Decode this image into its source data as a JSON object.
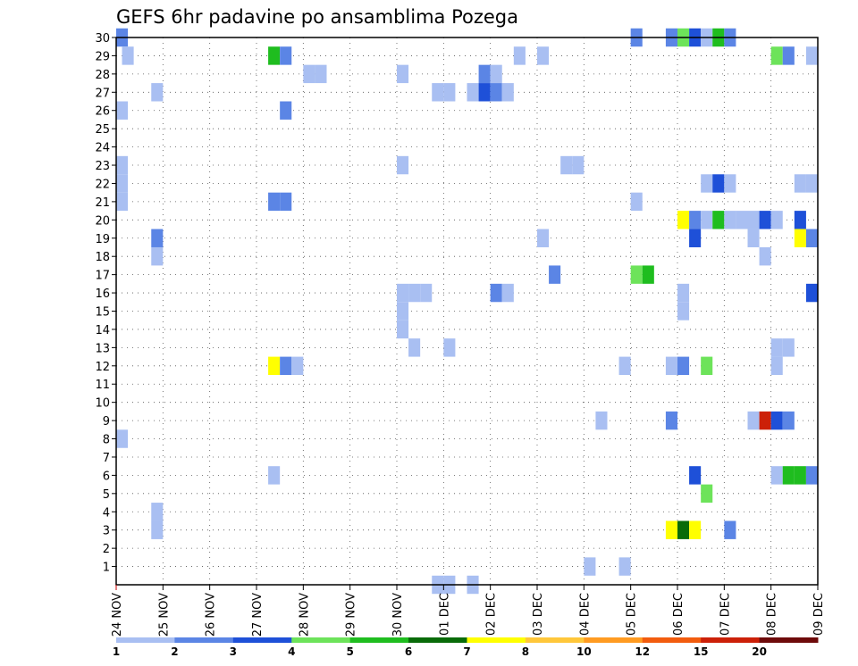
{
  "chart_data": {
    "type": "heatmap",
    "title": "GEFS 6hr padavine po ansamblima Pozega",
    "xlabel": "",
    "ylabel": "",
    "x_tick_labels": [
      "24 NOV",
      "25 NOV",
      "26 NOV",
      "27 NOV",
      "28 NOV",
      "29 NOV",
      "30 NOV",
      "01 DEC",
      "02 DEC",
      "03 DEC",
      "04 DEC",
      "05 DEC",
      "06 DEC",
      "07 DEC",
      "08 DEC",
      "09 DEC"
    ],
    "y_tick_labels": [
      "1",
      "2",
      "3",
      "4",
      "5",
      "6",
      "7",
      "8",
      "9",
      "10",
      "11",
      "12",
      "13",
      "14",
      "15",
      "16",
      "17",
      "18",
      "19",
      "20",
      "21",
      "22",
      "23",
      "24",
      "25",
      "26",
      "27",
      "28",
      "29",
      "30"
    ],
    "xlim": [
      0,
      15
    ],
    "ylim": [
      0,
      30
    ],
    "grid": true,
    "colorbar": {
      "labels": [
        "1",
        "2",
        "3",
        "4",
        "5",
        "6",
        "7",
        "8",
        "10",
        "12",
        "15",
        "20"
      ],
      "colors": [
        "#a9bff2",
        "#5b85e5",
        "#1e50d8",
        "#6de35a",
        "#1fbd1f",
        "#096b09",
        "#ffff00",
        "#ffc73a",
        "#ff9b21",
        "#f25c0e",
        "#cc2008",
        "#6e0a0a"
      ]
    },
    "cells": [
      {
        "x": 0.125,
        "y": 30,
        "level": 2
      },
      {
        "x": 0.25,
        "y": 29,
        "level": 1
      },
      {
        "x": 3.375,
        "y": 29,
        "level": 5
      },
      {
        "x": 3.625,
        "y": 29,
        "level": 2
      },
      {
        "x": 8.625,
        "y": 29,
        "level": 1
      },
      {
        "x": 9.125,
        "y": 29,
        "level": 1
      },
      {
        "x": 14.125,
        "y": 29,
        "level": 4
      },
      {
        "x": 14.375,
        "y": 29,
        "level": 2
      },
      {
        "x": 14.875,
        "y": 29,
        "level": 1
      },
      {
        "x": 11.125,
        "y": 30,
        "level": 2
      },
      {
        "x": 11.875,
        "y": 30,
        "level": 2
      },
      {
        "x": 12.125,
        "y": 30,
        "level": 4
      },
      {
        "x": 12.375,
        "y": 30,
        "level": 3
      },
      {
        "x": 12.625,
        "y": 30,
        "level": 1
      },
      {
        "x": 12.875,
        "y": 30,
        "level": 5
      },
      {
        "x": 13.125,
        "y": 30,
        "level": 2
      },
      {
        "x": 4.125,
        "y": 28,
        "level": 1
      },
      {
        "x": 4.375,
        "y": 28,
        "level": 1
      },
      {
        "x": 6.125,
        "y": 28,
        "level": 1
      },
      {
        "x": 7.875,
        "y": 28,
        "level": 2
      },
      {
        "x": 8.125,
        "y": 28,
        "level": 1
      },
      {
        "x": 0.875,
        "y": 27,
        "level": 1
      },
      {
        "x": 6.875,
        "y": 27,
        "level": 1
      },
      {
        "x": 7.125,
        "y": 27,
        "level": 1
      },
      {
        "x": 7.625,
        "y": 27,
        "level": 1
      },
      {
        "x": 7.875,
        "y": 27,
        "level": 3
      },
      {
        "x": 8.125,
        "y": 27,
        "level": 2
      },
      {
        "x": 8.375,
        "y": 27,
        "level": 1
      },
      {
        "x": 0.125,
        "y": 26,
        "level": 1
      },
      {
        "x": 3.625,
        "y": 26,
        "level": 2
      },
      {
        "x": 0.125,
        "y": 23,
        "level": 1
      },
      {
        "x": 6.125,
        "y": 23,
        "level": 1
      },
      {
        "x": 9.625,
        "y": 23,
        "level": 1
      },
      {
        "x": 9.875,
        "y": 23,
        "level": 1
      },
      {
        "x": 0.125,
        "y": 22,
        "level": 1
      },
      {
        "x": 12.625,
        "y": 22,
        "level": 1
      },
      {
        "x": 12.875,
        "y": 22,
        "level": 3
      },
      {
        "x": 13.125,
        "y": 22,
        "level": 1
      },
      {
        "x": 14.625,
        "y": 22,
        "level": 1
      },
      {
        "x": 14.875,
        "y": 22,
        "level": 1
      },
      {
        "x": 0.125,
        "y": 21,
        "level": 1
      },
      {
        "x": 3.375,
        "y": 21,
        "level": 2
      },
      {
        "x": 3.625,
        "y": 21,
        "level": 2
      },
      {
        "x": 11.125,
        "y": 21,
        "level": 1
      },
      {
        "x": 12.125,
        "y": 20,
        "level": 7
      },
      {
        "x": 12.375,
        "y": 20,
        "level": 2
      },
      {
        "x": 12.625,
        "y": 20,
        "level": 1
      },
      {
        "x": 12.875,
        "y": 20,
        "level": 5
      },
      {
        "x": 13.125,
        "y": 20,
        "level": 1
      },
      {
        "x": 13.375,
        "y": 20,
        "level": 1
      },
      {
        "x": 13.625,
        "y": 20,
        "level": 1
      },
      {
        "x": 13.875,
        "y": 20,
        "level": 3
      },
      {
        "x": 14.125,
        "y": 20,
        "level": 1
      },
      {
        "x": 14.625,
        "y": 20,
        "level": 3
      },
      {
        "x": 0.875,
        "y": 19,
        "level": 2
      },
      {
        "x": 9.125,
        "y": 19,
        "level": 1
      },
      {
        "x": 12.375,
        "y": 19,
        "level": 3
      },
      {
        "x": 13.625,
        "y": 19,
        "level": 1
      },
      {
        "x": 14.625,
        "y": 19,
        "level": 7
      },
      {
        "x": 14.875,
        "y": 19,
        "level": 2
      },
      {
        "x": 0.875,
        "y": 18,
        "level": 1
      },
      {
        "x": 13.875,
        "y": 18,
        "level": 1
      },
      {
        "x": 9.375,
        "y": 17,
        "level": 2
      },
      {
        "x": 11.125,
        "y": 17,
        "level": 4
      },
      {
        "x": 11.375,
        "y": 17,
        "level": 5
      },
      {
        "x": 6.125,
        "y": 16,
        "level": 1
      },
      {
        "x": 6.375,
        "y": 16,
        "level": 1
      },
      {
        "x": 6.625,
        "y": 16,
        "level": 1
      },
      {
        "x": 8.125,
        "y": 16,
        "level": 2
      },
      {
        "x": 8.375,
        "y": 16,
        "level": 1
      },
      {
        "x": 12.125,
        "y": 16,
        "level": 1
      },
      {
        "x": 14.875,
        "y": 16,
        "level": 3
      },
      {
        "x": 6.125,
        "y": 15,
        "level": 1
      },
      {
        "x": 12.125,
        "y": 15,
        "level": 1
      },
      {
        "x": 6.125,
        "y": 14,
        "level": 1
      },
      {
        "x": 6.375,
        "y": 13,
        "level": 1
      },
      {
        "x": 7.125,
        "y": 13,
        "level": 1
      },
      {
        "x": 14.125,
        "y": 13,
        "level": 1
      },
      {
        "x": 14.375,
        "y": 13,
        "level": 1
      },
      {
        "x": 3.375,
        "y": 12,
        "level": 7
      },
      {
        "x": 3.625,
        "y": 12,
        "level": 2
      },
      {
        "x": 3.875,
        "y": 12,
        "level": 1
      },
      {
        "x": 10.875,
        "y": 12,
        "level": 1
      },
      {
        "x": 11.875,
        "y": 12,
        "level": 1
      },
      {
        "x": 12.125,
        "y": 12,
        "level": 2
      },
      {
        "x": 12.625,
        "y": 12,
        "level": 4
      },
      {
        "x": 14.125,
        "y": 12,
        "level": 1
      },
      {
        "x": 10.375,
        "y": 9,
        "level": 1
      },
      {
        "x": 11.875,
        "y": 9,
        "level": 2
      },
      {
        "x": 13.625,
        "y": 9,
        "level": 1
      },
      {
        "x": 13.875,
        "y": 9,
        "level": 11
      },
      {
        "x": 14.125,
        "y": 9,
        "level": 3
      },
      {
        "x": 14.375,
        "y": 9,
        "level": 2
      },
      {
        "x": 0.125,
        "y": 8,
        "level": 1
      },
      {
        "x": 3.375,
        "y": 6,
        "level": 1
      },
      {
        "x": 12.375,
        "y": 6,
        "level": 3
      },
      {
        "x": 14.125,
        "y": 6,
        "level": 1
      },
      {
        "x": 14.375,
        "y": 6,
        "level": 5
      },
      {
        "x": 14.625,
        "y": 6,
        "level": 5
      },
      {
        "x": 14.875,
        "y": 6,
        "level": 2
      },
      {
        "x": 12.625,
        "y": 5,
        "level": 4
      },
      {
        "x": 0.875,
        "y": 4,
        "level": 1
      },
      {
        "x": 0.875,
        "y": 3,
        "level": 1
      },
      {
        "x": 11.875,
        "y": 3,
        "level": 7
      },
      {
        "x": 12.125,
        "y": 3,
        "level": 6
      },
      {
        "x": 12.375,
        "y": 3,
        "level": 7
      },
      {
        "x": 13.125,
        "y": 3,
        "level": 2
      },
      {
        "x": 10.125,
        "y": 1,
        "level": 1
      },
      {
        "x": 10.875,
        "y": 1,
        "level": 1
      },
      {
        "x": 6.875,
        "y": 0,
        "level": 1
      },
      {
        "x": 7.125,
        "y": 0,
        "level": 1
      },
      {
        "x": 7.625,
        "y": 0,
        "level": 1
      }
    ]
  }
}
